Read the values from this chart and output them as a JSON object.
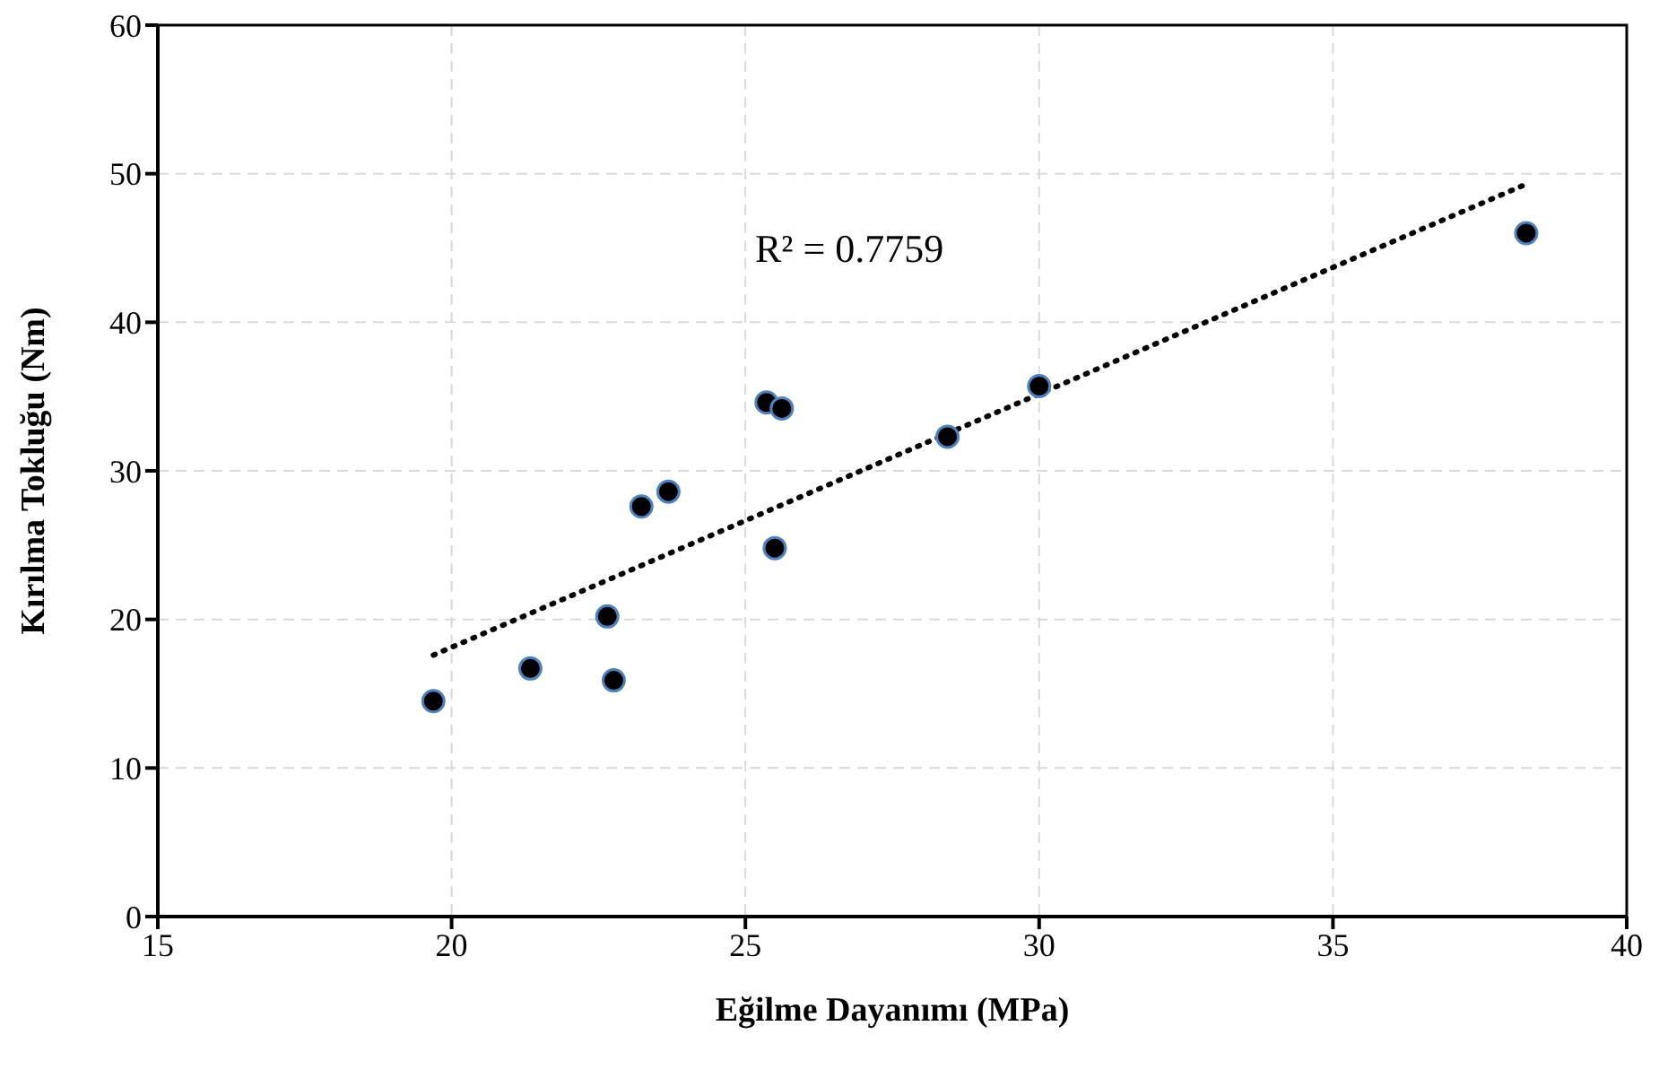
{
  "chart_data": {
    "type": "scatter",
    "xlabel": "Eğilme Dayanımı (MPa)",
    "ylabel": "Kırılma Tokluğu (Nm)",
    "annotations": [
      "R² = 0.7759"
    ],
    "x": [
      19.69,
      21.34,
      22.65,
      22.76,
      23.23,
      23.69,
      25.36,
      25.62,
      25.5,
      28.44,
      30.0,
      38.29
    ],
    "series": [
      {
        "color": "#000000",
        "marker": "circle",
        "values": [
          14.5,
          16.7,
          20.2,
          15.9,
          27.6,
          28.6,
          34.6,
          34.2,
          24.8,
          32.3,
          35.7,
          46.0
        ]
      },
      {
        "type": "line",
        "color": "#000000",
        "line_style": "dotted",
        "marker": "none",
        "x": [
          19.69,
          38.29
        ],
        "values": [
          17.6,
          49.3
        ]
      }
    ],
    "xlim": [
      15,
      40
    ],
    "xticks": [
      15,
      20,
      25,
      30,
      35,
      40
    ],
    "ylim": [
      0,
      60
    ],
    "yticks": [
      0,
      10,
      20,
      30,
      40,
      50,
      60
    ],
    "grid": true,
    "legend": false
  }
}
